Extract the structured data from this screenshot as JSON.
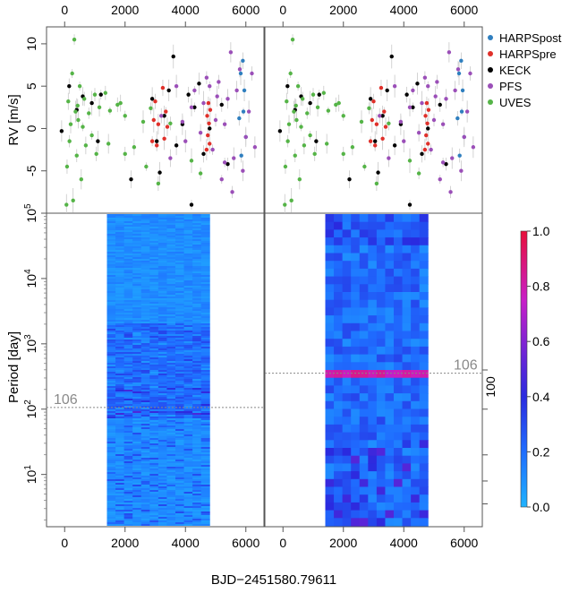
{
  "chart_data": {
    "type": "scatter+heatmap",
    "xlabel": "BJD−2451580.79611",
    "x_ticks": [
      0,
      2000,
      4000,
      6000
    ],
    "xlim": [
      -600,
      6600
    ],
    "rv_panel": {
      "ylabel": "RV [m/s]",
      "ylim": [
        -10,
        12
      ],
      "y_ticks": [
        -5,
        0,
        5,
        10
      ],
      "series": [
        {
          "name": "HARPSpost",
          "color": "#2f7fbf",
          "x": [
            5780,
            5830,
            5900,
            5950,
            6000,
            5850,
            5920
          ],
          "y": [
            1.2,
            6.5,
            8.0,
            4.5,
            -1.0,
            -3.2,
            2.0
          ]
        },
        {
          "name": "HARPSpre",
          "color": "#e0302a",
          "x": [
            2900,
            2950,
            3000,
            3050,
            3100,
            3250,
            3300,
            3350,
            3400,
            4700,
            4720,
            4740,
            4760,
            4780,
            4800,
            4820
          ],
          "y": [
            -1.5,
            1.0,
            3.2,
            -2.0,
            0.5,
            4.8,
            -1.2,
            2.0,
            0.2,
            -2.5,
            1.5,
            -0.8,
            3.0,
            0.6,
            -1.8,
            2.2
          ]
        },
        {
          "name": "KECK",
          "color": "#000000",
          "x": [
            -100,
            150,
            400,
            600,
            900,
            1100,
            1200,
            2200,
            2900,
            3050,
            3150,
            3300,
            3450,
            3600,
            3700,
            3900,
            4100,
            4200,
            4300,
            4450,
            4600,
            4800,
            5200,
            5400
          ],
          "y": [
            -0.3,
            5.0,
            2.2,
            3.8,
            3.0,
            -1.5,
            4.0,
            -6.0,
            3.5,
            -1.5,
            -5.2,
            1.5,
            4.5,
            8.5,
            -2.0,
            0.5,
            4.0,
            -9.0,
            2.5,
            5.3,
            -3.0,
            0.0,
            2.8,
            -4.2
          ]
        },
        {
          "name": "PFS",
          "color": "#9b4fb8",
          "x": [
            3200,
            3500,
            3700,
            3900,
            4000,
            4200,
            4300,
            4500,
            4600,
            4700,
            4900,
            5000,
            5100,
            5200,
            5300,
            5400,
            5500,
            5600,
            5700,
            5800,
            5900,
            6000,
            6100,
            6200,
            5550,
            5300,
            4800,
            5050,
            6300
          ],
          "y": [
            1.5,
            -3.5,
            5.0,
            0.8,
            -1.5,
            2.5,
            4.5,
            -0.5,
            3.0,
            6.0,
            -2.5,
            1.0,
            5.5,
            -6.0,
            0.5,
            3.5,
            9.0,
            -3.5,
            4.5,
            7.0,
            -5.0,
            -1.0,
            2.0,
            6.5,
            -7.5,
            -4.0,
            5.0,
            3.8,
            -2.2
          ]
        },
        {
          "name": "UVES",
          "color": "#55b447",
          "x": [
            80,
            120,
            160,
            200,
            250,
            280,
            320,
            360,
            400,
            450,
            500,
            550,
            600,
            650,
            700,
            800,
            900,
            1000,
            1050,
            1150,
            1350,
            1500,
            1750,
            2000,
            2300,
            2600,
            2700,
            2850,
            2000,
            1850,
            1450,
            3100,
            4200,
            4500,
            3500,
            60,
            430
          ],
          "y": [
            -4.5,
            3.2,
            -1.5,
            0.5,
            6.5,
            -8.5,
            10.5,
            2.0,
            -3.2,
            1.0,
            5.0,
            -6.0,
            0.2,
            3.5,
            -2.0,
            1.8,
            -0.8,
            4.0,
            -3.0,
            2.5,
            4.2,
            2.1,
            2.8,
            1.5,
            -2.2,
            0.8,
            -4.5,
            2.4,
            -3.0,
            3.0,
            -1.8,
            -6.5,
            -3.8,
            -5.3,
            0.6,
            -9.0,
            2.7
          ]
        }
      ]
    },
    "periodogram": {
      "ylabel": "Period [day]",
      "ylim_log10": [
        0.2,
        5
      ],
      "y_ticks": [
        "10^1",
        "10^2",
        "10^3",
        "10^4",
        "10^5"
      ],
      "x_range": [
        1400,
        4800
      ],
      "reference_period": 106,
      "reference_label": "106",
      "right_axis_ticks": [
        {
          "period": 100,
          "label": "100"
        }
      ],
      "colorbar": {
        "min": 0.0,
        "max": 1.0,
        "ticks": [
          "0.0",
          "0.2",
          "0.4",
          "0.6",
          "0.8",
          "1.0"
        ]
      }
    }
  }
}
